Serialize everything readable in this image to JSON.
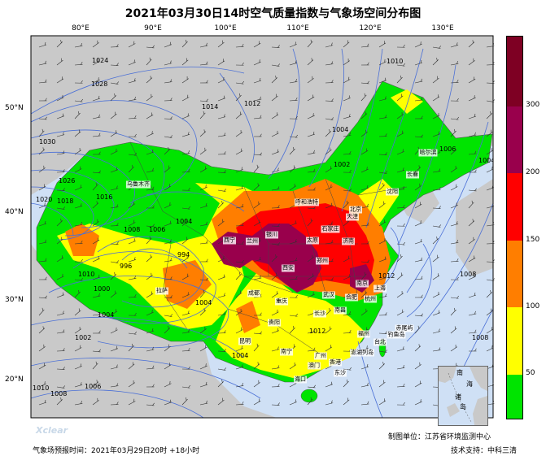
{
  "title": "2021年03月30日14时空气质量指数与气象场空间分布图",
  "lon_labels": [
    "80°E",
    "90°E",
    "100°E",
    "110°E",
    "120°E",
    "130°E"
  ],
  "lat_labels": [
    "50°N",
    "40°N",
    "30°N",
    "20°N"
  ],
  "colorbar": {
    "ticks": [
      "50",
      "100",
      "150",
      "200",
      "300"
    ],
    "colors": [
      "#00e400",
      "#ffff00",
      "#ff7e00",
      "#ff0000",
      "#99004c",
      "#7e0023"
    ]
  },
  "isobars": [
    "1024",
    "1028",
    "1030",
    "1026",
    "1024",
    "1020",
    "1018",
    "1016",
    "1014",
    "1012",
    "1010",
    "1008",
    "1006",
    "1004",
    "1002",
    "1000",
    "996",
    "994",
    "1004",
    "1008",
    "1012",
    "1010",
    "1008",
    "1006",
    "1004",
    "1002",
    "1010",
    "1008",
    "1006",
    "1004",
    "1004",
    "1012"
  ],
  "cities": [
    "乌鲁木齐",
    "哈尔滨",
    "长春",
    "沈阳",
    "呼和浩特",
    "北京",
    "天津",
    "石家庄",
    "太原",
    "济南",
    "银川",
    "兰州",
    "西宁",
    "西安",
    "郑州",
    "南京",
    "上海",
    "合肥",
    "武汉",
    "杭州",
    "成都",
    "重庆",
    "长沙",
    "南昌",
    "拉萨",
    "贵阳",
    "昆明",
    "福州",
    "台北",
    "南宁",
    "广州",
    "澳门",
    "香港",
    "海口",
    "赤尾屿",
    "钓鱼岛",
    "澎湖列岛",
    "东沙"
  ],
  "inset": {
    "label1": "南",
    "label2": "海",
    "label3": "诸",
    "label4": "岛"
  },
  "credit": "制图单位：江苏省环境监测中心",
  "logo": "Xclear",
  "footer_left": "气象场预报时间：2021年03月29日20时 +18小时",
  "footer_right": "技术支持：中科三清"
}
